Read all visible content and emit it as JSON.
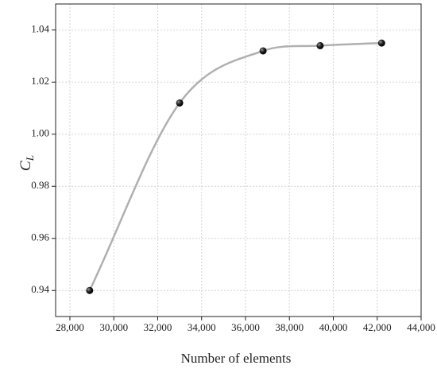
{
  "chart_data": {
    "type": "line",
    "x_label": "Number of elements",
    "y_label": {
      "text": "C",
      "subscript": "L"
    },
    "x": [
      28900,
      33000,
      36800,
      39400,
      42200
    ],
    "series": [
      {
        "color": "#b0b0b0",
        "values": [
          0.94,
          1.012,
          1.032,
          1.034,
          1.035
        ]
      }
    ],
    "xlim": [
      27350,
      44000
    ],
    "ylim": [
      0.93,
      1.05
    ],
    "xticks": [
      {
        "value": 28000,
        "label": "28,000"
      },
      {
        "value": 30000,
        "label": "30,000"
      },
      {
        "value": 32000,
        "label": "32,000"
      },
      {
        "value": 34000,
        "label": "34,000"
      },
      {
        "value": 36000,
        "label": "36,000"
      },
      {
        "value": 38000,
        "label": "38,000"
      },
      {
        "value": 40000,
        "label": "40,000"
      },
      {
        "value": 42000,
        "label": "42,000"
      },
      {
        "value": 44000,
        "label": "44,000"
      }
    ],
    "yticks": [
      0.94,
      0.96,
      0.98,
      {
        "value": 1.0,
        "label": "1.00"
      },
      1.02,
      1.04
    ],
    "grid": true
  }
}
